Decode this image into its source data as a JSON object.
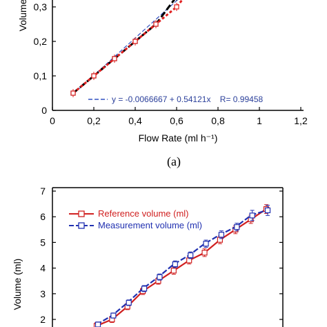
{
  "chart_data": [
    {
      "type": "line",
      "panel_label": "(a)",
      "xlabel": "Flow Rate (ml h⁻¹)",
      "ylabel": "Volume",
      "xlim": [
        0,
        1.2
      ],
      "ylim": [
        0,
        0.35
      ],
      "x_ticks": [
        "0",
        "0,2",
        "0,4",
        "0,6",
        "0,8",
        "1",
        "1,2"
      ],
      "y_ticks": [
        "0",
        "0,1",
        "0,2",
        "0,3"
      ],
      "grid": false,
      "fit_label": "y = -0.0066667 + 0.54121x    R= 0.99458",
      "colors": {
        "series1": "#000000",
        "series2": "#e02020",
        "fit": "#3050c0"
      },
      "series": [
        {
          "values_x": [
            0.1,
            0.2,
            0.3,
            0.4,
            0.5,
            0.6
          ],
          "values_y": [
            0.05,
            0.1,
            0.15,
            0.2,
            0.25,
            0.33
          ]
        },
        {
          "values_x": [
            0.1,
            0.2,
            0.3,
            0.4,
            0.5,
            0.6
          ],
          "values_y": [
            0.05,
            0.1,
            0.15,
            0.2,
            0.25,
            0.3
          ]
        }
      ],
      "fit_line": {
        "slope": 0.54121,
        "intercept": -0.0066667,
        "x_range": [
          0.1,
          0.62
        ]
      }
    },
    {
      "type": "line",
      "xlabel": "",
      "ylabel": "Volume (ml)",
      "ylim": [
        1.8,
        7
      ],
      "y_ticks": [
        "2",
        "3",
        "4",
        "5",
        "6",
        "7"
      ],
      "grid": false,
      "legend_position": "top-left",
      "colors": {
        "reference": "#d02020",
        "measurement": "#2030b0"
      },
      "series": [
        {
          "name": "Reference volume (ml)",
          "x": [
            1,
            2,
            3,
            4,
            5,
            6,
            7,
            8,
            9,
            10,
            11,
            12
          ],
          "values": [
            1.75,
            2.0,
            2.5,
            3.1,
            3.5,
            3.9,
            4.3,
            4.6,
            5.1,
            5.5,
            5.9,
            6.3
          ],
          "errors": [
            0.12,
            0.12,
            0.12,
            0.13,
            0.13,
            0.14,
            0.14,
            0.15,
            0.15,
            0.16,
            0.16,
            0.17
          ]
        },
        {
          "name": "Measurement volume (ml)",
          "x": [
            1,
            2,
            3,
            4,
            5,
            6,
            7,
            8,
            9,
            10,
            11,
            12
          ],
          "values": [
            1.8,
            2.15,
            2.65,
            3.2,
            3.65,
            4.15,
            4.5,
            4.95,
            5.3,
            5.6,
            6.05,
            6.25
          ],
          "errors": [
            0.1,
            0.1,
            0.11,
            0.12,
            0.12,
            0.13,
            0.13,
            0.14,
            0.15,
            0.15,
            0.2,
            0.2
          ]
        }
      ]
    }
  ]
}
